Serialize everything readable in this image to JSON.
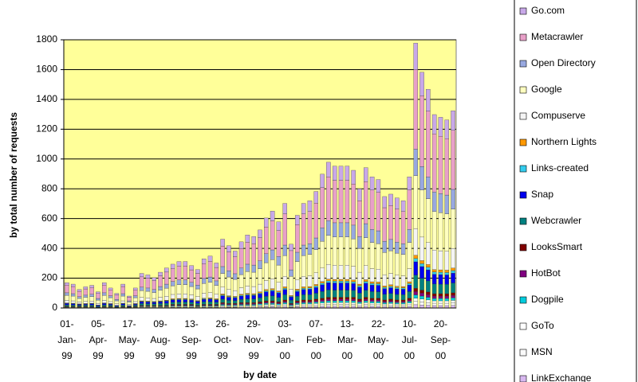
{
  "chart_data": {
    "type": "stacked_bar",
    "ylabel": "by total number of requests",
    "xlabel": "by date",
    "ylim": [
      0,
      1800
    ],
    "yticks": [
      0,
      200,
      400,
      600,
      800,
      1000,
      1200,
      1400,
      1600,
      1800
    ],
    "grid": true,
    "categories": [
      "01-Jan-99",
      null,
      null,
      null,
      null,
      "05-Apr-99",
      null,
      null,
      null,
      null,
      "17-May-99",
      null,
      null,
      null,
      null,
      "09-Aug-99",
      null,
      null,
      null,
      null,
      "13-Sep-99",
      null,
      null,
      null,
      null,
      "26-Oct-99",
      null,
      null,
      null,
      null,
      "29-Nov-99",
      null,
      null,
      null,
      null,
      "03-Jan-00",
      null,
      null,
      null,
      null,
      "07-Feb-00",
      null,
      null,
      null,
      null,
      "13-Mar-00",
      null,
      null,
      null,
      null,
      "22-May-00",
      null,
      null,
      null,
      null,
      "10-Jul-00",
      null,
      null,
      null,
      null,
      "20-Sep-00",
      null,
      null
    ],
    "series": [
      {
        "name": "Go.com",
        "color": "#c8a8e8",
        "values": [
          17,
          16,
          12,
          14,
          15,
          11,
          17,
          13,
          10,
          16,
          8,
          13,
          23,
          22,
          20,
          24,
          27,
          29,
          31,
          31,
          28,
          26,
          33,
          35,
          30,
          46,
          42,
          38,
          44,
          49,
          48,
          52,
          60,
          65,
          58,
          70,
          43,
          62,
          70,
          72,
          78,
          90,
          98,
          95,
          95,
          95,
          92,
          80,
          94,
          88,
          86,
          75,
          76,
          74,
          72,
          88,
          178,
          158,
          147,
          130,
          128,
          126,
          132
        ]
      },
      {
        "name": "Metacrawler",
        "color": "#e8a0c8",
        "values": [
          51,
          48,
          36,
          42,
          45,
          33,
          51,
          39,
          30,
          48,
          24,
          39,
          69,
          66,
          60,
          72,
          81,
          87,
          93,
          93,
          84,
          78,
          99,
          105,
          90,
          138,
          126,
          114,
          132,
          147,
          144,
          156,
          180,
          195,
          174,
          210,
          129,
          186,
          210,
          216,
          234,
          270,
          294,
          285,
          285,
          285,
          276,
          240,
          282,
          264,
          258,
          225,
          228,
          222,
          216,
          264,
          534,
          474,
          441,
          390,
          384,
          378,
          396
        ]
      },
      {
        "name": "Open Directory",
        "color": "#98a8e0",
        "values": [
          17,
          16,
          12,
          14,
          15,
          11,
          17,
          13,
          10,
          16,
          8,
          13,
          23,
          22,
          20,
          24,
          27,
          29,
          31,
          31,
          28,
          26,
          33,
          35,
          30,
          46,
          42,
          38,
          44,
          49,
          48,
          52,
          60,
          65,
          58,
          70,
          43,
          62,
          70,
          72,
          78,
          90,
          98,
          95,
          95,
          95,
          92,
          80,
          94,
          88,
          86,
          75,
          76,
          74,
          72,
          88,
          178,
          158,
          147,
          130,
          128,
          126,
          132
        ]
      },
      {
        "name": "Google",
        "color": "#ffffc0",
        "values": [
          34,
          32,
          24,
          28,
          30,
          22,
          34,
          26,
          20,
          32,
          16,
          26,
          46,
          44,
          40,
          48,
          54,
          58,
          62,
          62,
          56,
          52,
          66,
          70,
          60,
          92,
          84,
          76,
          88,
          98,
          96,
          104,
          120,
          130,
          116,
          140,
          86,
          124,
          140,
          144,
          156,
          180,
          196,
          190,
          190,
          190,
          184,
          160,
          188,
          176,
          172,
          150,
          152,
          148,
          144,
          176,
          356,
          316,
          294,
          260,
          256,
          252,
          264
        ]
      },
      {
        "name": "Compuserve",
        "color": "#f4f4f4",
        "values": [
          17,
          16,
          12,
          14,
          15,
          11,
          17,
          13,
          10,
          16,
          8,
          13,
          23,
          22,
          20,
          24,
          27,
          29,
          31,
          31,
          28,
          26,
          33,
          35,
          30,
          46,
          42,
          38,
          44,
          49,
          48,
          52,
          60,
          65,
          58,
          70,
          43,
          62,
          70,
          72,
          78,
          90,
          98,
          95,
          95,
          95,
          92,
          80,
          94,
          88,
          86,
          75,
          76,
          74,
          72,
          88,
          178,
          158,
          147,
          130,
          128,
          126,
          132
        ]
      },
      {
        "name": "Northern Lights",
        "color": "#ff9900",
        "values": [
          2,
          2,
          2,
          2,
          2,
          1,
          2,
          2,
          1,
          2,
          1,
          2,
          3,
          3,
          3,
          3,
          3,
          4,
          4,
          4,
          4,
          3,
          4,
          4,
          4,
          6,
          5,
          5,
          6,
          6,
          6,
          7,
          8,
          8,
          7,
          9,
          5,
          8,
          9,
          9,
          10,
          11,
          12,
          12,
          12,
          12,
          12,
          10,
          12,
          11,
          11,
          9,
          10,
          9,
          9,
          11,
          22,
          20,
          18,
          16,
          16,
          16,
          17
        ]
      },
      {
        "name": "Links-created",
        "color": "#33ccee",
        "values": [
          2,
          2,
          2,
          2,
          2,
          1,
          2,
          2,
          1,
          2,
          1,
          2,
          3,
          3,
          3,
          3,
          3,
          4,
          4,
          4,
          4,
          3,
          4,
          4,
          4,
          6,
          5,
          5,
          6,
          6,
          6,
          7,
          8,
          8,
          7,
          9,
          5,
          8,
          9,
          9,
          10,
          11,
          12,
          12,
          12,
          12,
          12,
          10,
          12,
          11,
          11,
          9,
          10,
          9,
          9,
          11,
          22,
          20,
          18,
          16,
          16,
          16,
          17
        ]
      },
      {
        "name": "Snap",
        "color": "#0000ee",
        "values": [
          9,
          8,
          6,
          7,
          8,
          6,
          9,
          7,
          5,
          8,
          4,
          7,
          12,
          11,
          10,
          12,
          14,
          15,
          16,
          16,
          14,
          13,
          17,
          18,
          15,
          23,
          21,
          19,
          22,
          25,
          24,
          26,
          30,
          33,
          29,
          35,
          22,
          31,
          35,
          36,
          39,
          45,
          49,
          48,
          48,
          48,
          46,
          40,
          47,
          44,
          43,
          38,
          38,
          37,
          36,
          44,
          89,
          79,
          74,
          65,
          64,
          63,
          66
        ]
      },
      {
        "name": "Webcrawler",
        "color": "#008080",
        "values": [
          9,
          8,
          6,
          7,
          8,
          6,
          9,
          7,
          5,
          8,
          4,
          7,
          12,
          11,
          10,
          12,
          14,
          15,
          16,
          16,
          14,
          13,
          17,
          18,
          15,
          23,
          21,
          19,
          22,
          25,
          24,
          26,
          30,
          33,
          29,
          35,
          22,
          31,
          35,
          36,
          39,
          45,
          49,
          48,
          48,
          48,
          46,
          40,
          47,
          44,
          43,
          38,
          38,
          37,
          36,
          44,
          89,
          79,
          74,
          65,
          64,
          63,
          66
        ]
      },
      {
        "name": "LooksSmart",
        "color": "#800000",
        "values": [
          2,
          2,
          2,
          2,
          2,
          1,
          2,
          2,
          1,
          2,
          1,
          2,
          3,
          3,
          3,
          3,
          3,
          4,
          4,
          4,
          4,
          3,
          4,
          4,
          4,
          6,
          5,
          5,
          6,
          6,
          6,
          7,
          8,
          8,
          7,
          9,
          5,
          8,
          9,
          9,
          10,
          11,
          12,
          12,
          12,
          12,
          12,
          10,
          12,
          11,
          11,
          9,
          10,
          9,
          9,
          11,
          22,
          20,
          18,
          16,
          16,
          16,
          17
        ]
      },
      {
        "name": "HotBot",
        "color": "#800080",
        "values": [
          2,
          2,
          2,
          2,
          2,
          1,
          2,
          2,
          1,
          2,
          1,
          2,
          3,
          3,
          3,
          3,
          3,
          4,
          4,
          4,
          4,
          3,
          4,
          4,
          4,
          6,
          5,
          5,
          6,
          6,
          6,
          7,
          8,
          8,
          7,
          9,
          5,
          8,
          9,
          9,
          10,
          11,
          12,
          12,
          12,
          12,
          12,
          10,
          12,
          11,
          11,
          9,
          10,
          9,
          9,
          11,
          22,
          20,
          18,
          16,
          16,
          16,
          17
        ]
      },
      {
        "name": "Dogpile",
        "color": "#00ccdd",
        "values": [
          2,
          2,
          2,
          2,
          2,
          1,
          2,
          2,
          1,
          2,
          1,
          2,
          3,
          3,
          3,
          3,
          3,
          4,
          4,
          4,
          4,
          3,
          4,
          4,
          4,
          6,
          5,
          5,
          6,
          6,
          6,
          7,
          8,
          8,
          7,
          9,
          5,
          8,
          9,
          9,
          10,
          11,
          12,
          12,
          12,
          12,
          12,
          10,
          12,
          11,
          11,
          9,
          10,
          9,
          9,
          11,
          22,
          20,
          18,
          16,
          16,
          16,
          17
        ]
      },
      {
        "name": "GoTo",
        "color": "#ffffff",
        "values": [
          2,
          2,
          2,
          2,
          2,
          1,
          2,
          2,
          1,
          2,
          1,
          2,
          3,
          3,
          3,
          3,
          3,
          4,
          4,
          4,
          4,
          3,
          4,
          4,
          4,
          6,
          5,
          5,
          6,
          6,
          6,
          7,
          8,
          8,
          7,
          9,
          5,
          8,
          9,
          9,
          10,
          11,
          12,
          12,
          12,
          12,
          12,
          10,
          12,
          11,
          11,
          9,
          10,
          9,
          9,
          11,
          22,
          20,
          18,
          16,
          16,
          16,
          17
        ]
      },
      {
        "name": "MSN",
        "color": "#fafafa",
        "values": [
          2,
          2,
          2,
          2,
          2,
          1,
          2,
          2,
          1,
          2,
          1,
          2,
          3,
          3,
          3,
          3,
          3,
          4,
          4,
          4,
          4,
          3,
          4,
          4,
          4,
          6,
          5,
          5,
          6,
          6,
          6,
          7,
          8,
          8,
          7,
          9,
          5,
          8,
          9,
          9,
          10,
          11,
          12,
          12,
          12,
          12,
          12,
          10,
          12,
          11,
          11,
          9,
          10,
          9,
          9,
          11,
          22,
          20,
          18,
          16,
          16,
          16,
          17
        ]
      },
      {
        "name": "LinkExchange",
        "color": "#d8b8f0",
        "values": [
          2,
          2,
          2,
          2,
          2,
          1,
          2,
          2,
          1,
          2,
          1,
          2,
          3,
          3,
          3,
          3,
          3,
          4,
          4,
          4,
          4,
          3,
          4,
          4,
          4,
          6,
          5,
          5,
          6,
          6,
          6,
          7,
          8,
          8,
          7,
          9,
          5,
          8,
          9,
          9,
          10,
          11,
          12,
          12,
          12,
          12,
          12,
          10,
          12,
          11,
          11,
          9,
          10,
          9,
          9,
          11,
          22,
          20,
          18,
          16,
          16,
          16,
          17
        ]
      }
    ]
  }
}
